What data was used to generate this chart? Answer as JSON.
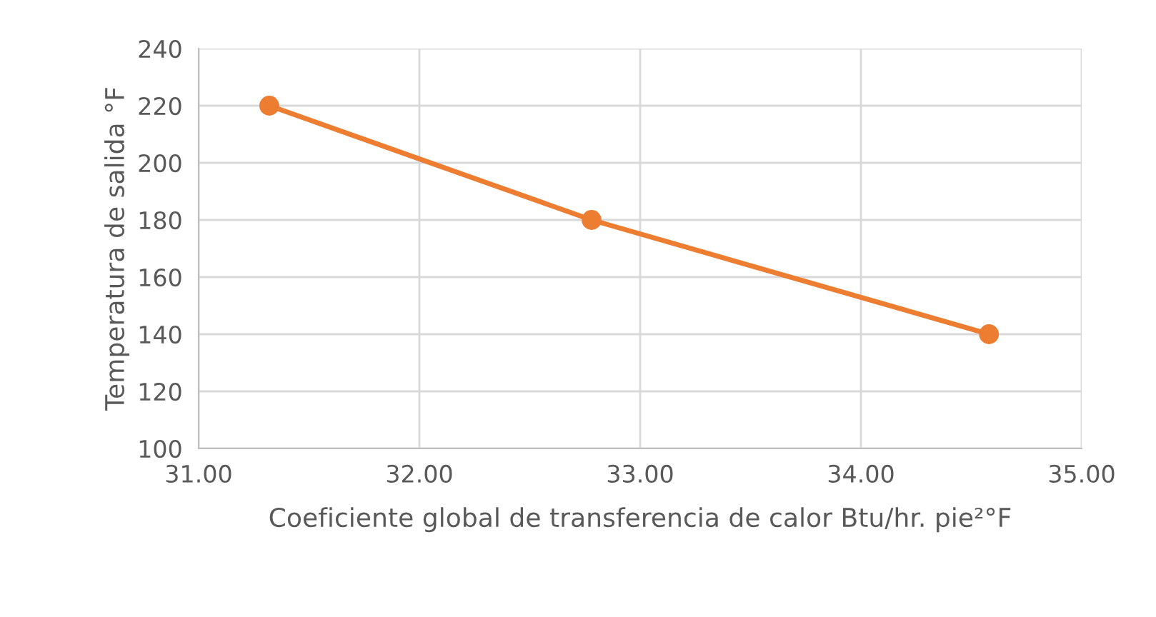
{
  "chart_data": {
    "type": "line",
    "xlabel": "Coeficiente global de transferencia de calor Btu/hr. pie²°F",
    "ylabel": "Temperatura de salida °F",
    "x": [
      31.32,
      32.78,
      34.58
    ],
    "series": [
      {
        "color": "#ed7d31",
        "values": [
          220,
          180,
          140
        ]
      }
    ],
    "xlim": [
      31,
      35
    ],
    "xticks": [
      {
        "value": 31,
        "label": "31.00"
      },
      {
        "value": 32,
        "label": "32.00"
      },
      {
        "value": 33,
        "label": "33.00"
      },
      {
        "value": 34,
        "label": "34.00"
      },
      {
        "value": 35,
        "label": "35.00"
      }
    ],
    "ylim": [
      100,
      240
    ],
    "yticks": [
      100,
      120,
      140,
      160,
      180,
      200,
      220,
      240
    ],
    "grid": true,
    "marker": "circle",
    "line_style": "solid",
    "legend": false
  }
}
